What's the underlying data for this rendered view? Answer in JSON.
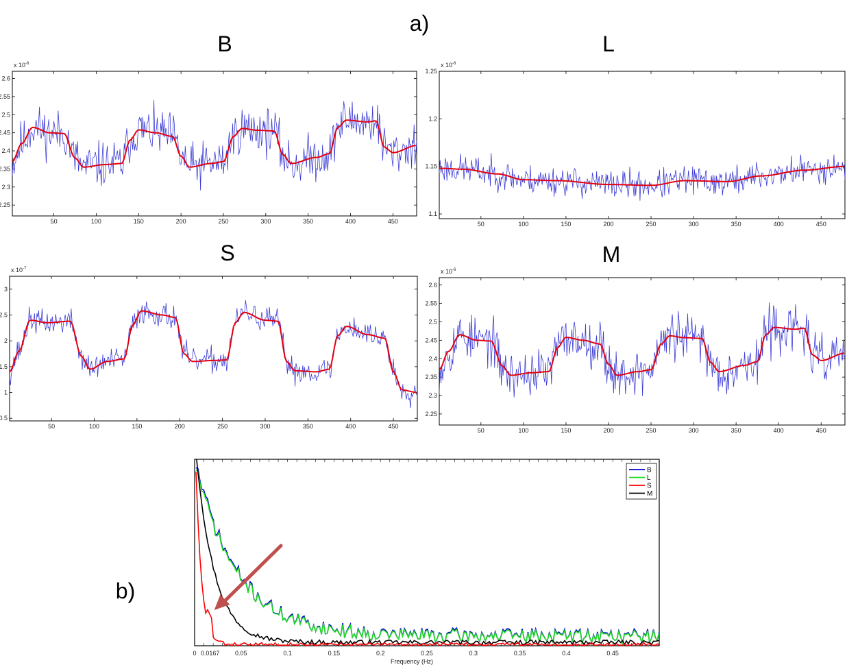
{
  "figure": {
    "label_a": "a)",
    "label_b": "b)"
  },
  "chart_data": [
    {
      "id": "B",
      "type": "line",
      "title": "B",
      "exponent": "x 10",
      "exponent_power": "-6",
      "xlim": [
        1,
        478
      ],
      "ylim": [
        2.22,
        2.62
      ],
      "xticks": [
        50,
        100,
        150,
        200,
        250,
        300,
        350,
        400,
        450
      ],
      "yticks": [
        2.25,
        2.3,
        2.35,
        2.4,
        2.45,
        2.5,
        2.55,
        2.6
      ],
      "ytick_labels": [
        "2.25",
        "2.3",
        "2.35",
        "2.4",
        "2.45",
        "2.5",
        "2.55",
        "2.6"
      ],
      "block_levels": [
        [
          1,
          2.37
        ],
        [
          12,
          2.42
        ],
        [
          25,
          2.465
        ],
        [
          45,
          2.45
        ],
        [
          62,
          2.448
        ],
        [
          75,
          2.38
        ],
        [
          85,
          2.355
        ],
        [
          110,
          2.362
        ],
        [
          130,
          2.365
        ],
        [
          140,
          2.43
        ],
        [
          150,
          2.458
        ],
        [
          170,
          2.45
        ],
        [
          190,
          2.44
        ],
        [
          200,
          2.385
        ],
        [
          210,
          2.355
        ],
        [
          235,
          2.365
        ],
        [
          250,
          2.37
        ],
        [
          262,
          2.44
        ],
        [
          272,
          2.462
        ],
        [
          290,
          2.457
        ],
        [
          310,
          2.455
        ],
        [
          320,
          2.39
        ],
        [
          330,
          2.365
        ],
        [
          360,
          2.382
        ],
        [
          375,
          2.392
        ],
        [
          385,
          2.465
        ],
        [
          395,
          2.485
        ],
        [
          420,
          2.48
        ],
        [
          430,
          2.483
        ],
        [
          440,
          2.41
        ],
        [
          450,
          2.395
        ],
        [
          478,
          2.415
        ]
      ],
      "noise": 0.045,
      "seed": 11,
      "series": [
        {
          "name": "signal",
          "color": "#3a3ad6",
          "width": 0.8,
          "kind": "noisy"
        },
        {
          "name": "fit",
          "color": "#e3000f",
          "width": 2,
          "kind": "smooth"
        }
      ]
    },
    {
      "id": "L",
      "type": "line",
      "title": "L",
      "exponent": "x 10",
      "exponent_power": "-6",
      "xlim": [
        1,
        478
      ],
      "ylim": [
        1.095,
        1.25
      ],
      "xticks": [
        50,
        100,
        150,
        200,
        250,
        300,
        350,
        400,
        450
      ],
      "yticks": [
        1.1,
        1.15,
        1.2,
        1.25
      ],
      "ytick_labels": [
        "1.1",
        "1.15",
        "1.2",
        "1.25"
      ],
      "block_levels": [
        [
          1,
          1.148
        ],
        [
          30,
          1.147
        ],
        [
          70,
          1.142
        ],
        [
          100,
          1.136
        ],
        [
          140,
          1.135
        ],
        [
          200,
          1.131
        ],
        [
          250,
          1.13
        ],
        [
          290,
          1.135
        ],
        [
          340,
          1.134
        ],
        [
          380,
          1.14
        ],
        [
          430,
          1.146
        ],
        [
          478,
          1.15
        ]
      ],
      "noise": 0.011,
      "seed": 23,
      "series": [
        {
          "name": "signal",
          "color": "#3a3ad6",
          "width": 0.8,
          "kind": "noisy"
        },
        {
          "name": "fit",
          "color": "#e3000f",
          "width": 2,
          "kind": "smooth"
        }
      ]
    },
    {
      "id": "S",
      "type": "line",
      "title": "S",
      "exponent": "x 10",
      "exponent_power": "-7",
      "xlim": [
        1,
        478
      ],
      "ylim": [
        0.45,
        3.25
      ],
      "xticks": [
        50,
        100,
        150,
        200,
        250,
        300,
        350,
        400,
        450
      ],
      "yticks": [
        0.5,
        1,
        1.5,
        2,
        2.5,
        3
      ],
      "ytick_labels": [
        "0.5",
        "1",
        "1.5",
        "2",
        "2.5",
        "3"
      ],
      "block_levels": [
        [
          1,
          1.4
        ],
        [
          12,
          1.8
        ],
        [
          25,
          2.4
        ],
        [
          45,
          2.35
        ],
        [
          72,
          2.38
        ],
        [
          85,
          1.7
        ],
        [
          95,
          1.45
        ],
        [
          115,
          1.6
        ],
        [
          135,
          1.65
        ],
        [
          145,
          2.3
        ],
        [
          155,
          2.58
        ],
        [
          180,
          2.5
        ],
        [
          195,
          2.45
        ],
        [
          205,
          1.75
        ],
        [
          215,
          1.6
        ],
        [
          240,
          1.62
        ],
        [
          255,
          1.63
        ],
        [
          265,
          2.35
        ],
        [
          275,
          2.55
        ],
        [
          300,
          2.4
        ],
        [
          315,
          2.38
        ],
        [
          325,
          1.6
        ],
        [
          335,
          1.42
        ],
        [
          360,
          1.4
        ],
        [
          375,
          1.45
        ],
        [
          385,
          2.1
        ],
        [
          395,
          2.28
        ],
        [
          420,
          2.12
        ],
        [
          440,
          2.05
        ],
        [
          450,
          1.4
        ],
        [
          460,
          1.05
        ],
        [
          478,
          1.0
        ]
      ],
      "noise": 0.17,
      "seed": 37,
      "series": [
        {
          "name": "signal",
          "color": "#3a3ad6",
          "width": 0.8,
          "kind": "noisy"
        },
        {
          "name": "fit",
          "color": "#e3000f",
          "width": 2,
          "kind": "smooth"
        }
      ]
    },
    {
      "id": "M",
      "type": "line",
      "title": "M",
      "exponent": "x 10",
      "exponent_power": "-6",
      "xlim": [
        1,
        478
      ],
      "ylim": [
        2.22,
        2.62
      ],
      "xticks": [
        50,
        100,
        150,
        200,
        250,
        300,
        350,
        400,
        450
      ],
      "yticks": [
        2.25,
        2.3,
        2.35,
        2.4,
        2.45,
        2.5,
        2.55,
        2.6
      ],
      "ytick_labels": [
        "2.25",
        "2.3",
        "2.35",
        "2.4",
        "2.45",
        "2.5",
        "2.55",
        "2.6"
      ],
      "block_levels": [
        [
          1,
          2.37
        ],
        [
          12,
          2.42
        ],
        [
          25,
          2.465
        ],
        [
          45,
          2.45
        ],
        [
          62,
          2.448
        ],
        [
          75,
          2.38
        ],
        [
          85,
          2.355
        ],
        [
          110,
          2.362
        ],
        [
          130,
          2.365
        ],
        [
          140,
          2.43
        ],
        [
          150,
          2.458
        ],
        [
          170,
          2.45
        ],
        [
          190,
          2.44
        ],
        [
          200,
          2.385
        ],
        [
          210,
          2.355
        ],
        [
          235,
          2.365
        ],
        [
          250,
          2.37
        ],
        [
          262,
          2.44
        ],
        [
          272,
          2.462
        ],
        [
          290,
          2.457
        ],
        [
          310,
          2.455
        ],
        [
          320,
          2.39
        ],
        [
          330,
          2.365
        ],
        [
          360,
          2.382
        ],
        [
          375,
          2.392
        ],
        [
          385,
          2.465
        ],
        [
          395,
          2.485
        ],
        [
          420,
          2.48
        ],
        [
          430,
          2.483
        ],
        [
          440,
          2.41
        ],
        [
          450,
          2.395
        ],
        [
          478,
          2.415
        ]
      ],
      "noise": 0.045,
      "seed": 53,
      "series": [
        {
          "name": "signal",
          "color": "#3a3ad6",
          "width": 0.8,
          "kind": "noisy"
        },
        {
          "name": "fit",
          "color": "#e3000f",
          "width": 2,
          "kind": "smooth"
        }
      ]
    },
    {
      "id": "spectrum",
      "type": "line",
      "title": "",
      "xlabel": "Frequency (Hz)",
      "xlim": [
        0,
        0.5
      ],
      "ylim": [
        0,
        1
      ],
      "xticks": [
        0,
        0.0167,
        0.05,
        0.1,
        0.15,
        0.2,
        0.25,
        0.3,
        0.35,
        0.4,
        0.45
      ],
      "xtick_labels": [
        "0",
        "0.0167",
        "0.05",
        "0.1",
        "0.15",
        "0.2",
        "0.25",
        "0.3",
        "0.35",
        "0.4",
        "0.45"
      ],
      "legend_position": "top-right",
      "annotation": {
        "type": "arrow",
        "target_x": 0.0167,
        "color": "#c0504d"
      },
      "series": [
        {
          "name": "B",
          "color": "#0000cc",
          "envelope": {
            "amp": 0.95,
            "decay": 0.045,
            "floor": 0.055,
            "osc": 0.04
          },
          "seed": 71
        },
        {
          "name": "L",
          "color": "#22dd22",
          "envelope": {
            "amp": 0.94,
            "decay": 0.045,
            "floor": 0.052,
            "osc": 0.035
          },
          "seed": 71
        },
        {
          "name": "S",
          "color": "#ff0000",
          "envelope": {
            "amp": 1.2,
            "decay": 0.006,
            "floor": 0.005,
            "osc": 0.012
          },
          "seed": 83
        },
        {
          "name": "M",
          "color": "#000000",
          "envelope": {
            "amp": 1.1,
            "decay": 0.02,
            "floor": 0.018,
            "osc": 0.012
          },
          "seed": 97
        }
      ]
    }
  ]
}
